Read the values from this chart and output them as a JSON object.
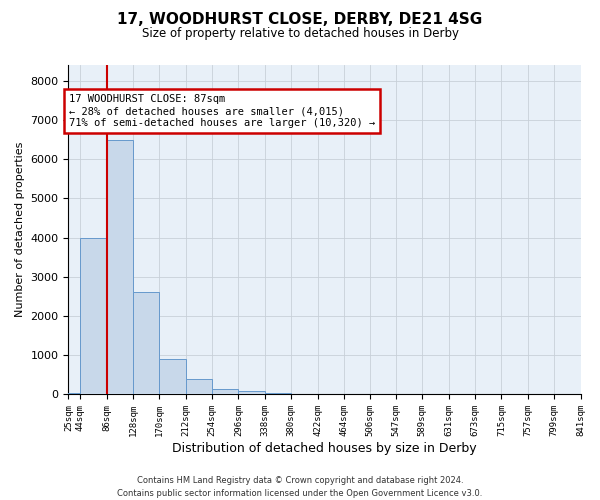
{
  "title": "17, WOODHURST CLOSE, DERBY, DE21 4SG",
  "subtitle": "Size of property relative to detached houses in Derby",
  "xlabel": "Distribution of detached houses by size in Derby",
  "ylabel": "Number of detached properties",
  "bar_color": "#c8d8ea",
  "bar_edgecolor": "#6699cc",
  "grid_color": "#c8d0d8",
  "background_color": "#e8f0f8",
  "annotation_text": "17 WOODHURST CLOSE: 87sqm\n← 28% of detached houses are smaller (4,015)\n71% of semi-detached houses are larger (10,320) →",
  "annotation_box_color": "#ffffff",
  "annotation_border_color": "#cc0000",
  "vline_color": "#cc0000",
  "footer": "Contains HM Land Registry data © Crown copyright and database right 2024.\nContains public sector information licensed under the Open Government Licence v3.0.",
  "bin_edges": [
    25,
    44,
    86,
    128,
    170,
    212,
    254,
    296,
    338,
    380,
    422,
    464,
    506,
    547,
    589,
    631,
    673,
    715,
    757,
    799,
    841
  ],
  "bar_heights": [
    50,
    4000,
    6500,
    2600,
    900,
    400,
    150,
    100,
    50,
    10,
    5,
    2,
    1,
    0,
    0,
    0,
    0,
    0,
    0,
    0
  ],
  "vline_x": 86,
  "ylim": [
    0,
    8400
  ],
  "yticks": [
    0,
    1000,
    2000,
    3000,
    4000,
    5000,
    6000,
    7000,
    8000
  ],
  "tick_labels": [
    "25sqm",
    "44sqm",
    "86sqm",
    "128sqm",
    "170sqm",
    "212sqm",
    "254sqm",
    "296sqm",
    "338sqm",
    "380sqm",
    "422sqm",
    "464sqm",
    "506sqm",
    "547sqm",
    "589sqm",
    "631sqm",
    "673sqm",
    "715sqm",
    "757sqm",
    "799sqm",
    "841sqm"
  ]
}
